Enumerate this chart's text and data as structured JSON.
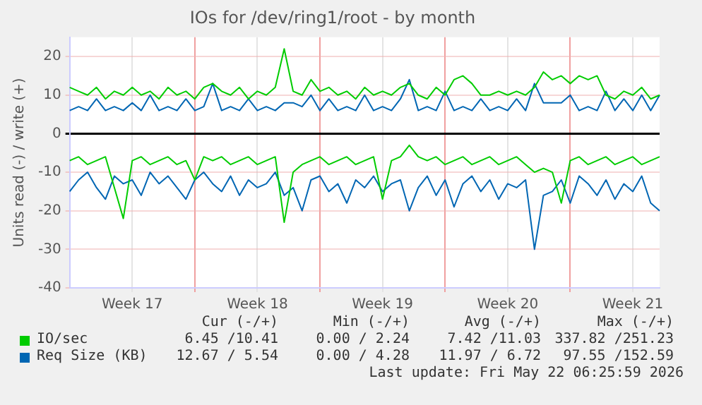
{
  "chart_data": {
    "type": "line",
    "title": "IOs for /dev/ring1/root - by month",
    "ylabel": "Units read (-) / write (+)",
    "categories": [
      null,
      null,
      null,
      null,
      null,
      null,
      null,
      "Week 17",
      null,
      null,
      null,
      null,
      null,
      null,
      null,
      null,
      null,
      null,
      null,
      null,
      null,
      "Week 18",
      null,
      null,
      null,
      null,
      null,
      null,
      null,
      null,
      null,
      null,
      null,
      null,
      null,
      "Week 19",
      null,
      null,
      null,
      null,
      null,
      null,
      null,
      null,
      null,
      null,
      null,
      null,
      null,
      "Week 20",
      null,
      null,
      null,
      null,
      null,
      null,
      null,
      null,
      null,
      null,
      null,
      null,
      null,
      "Week 21",
      null,
      null,
      null
    ],
    "ylim": [
      -40,
      25
    ],
    "yticks": [
      -40,
      -30,
      -20,
      -10,
      0,
      10,
      20
    ],
    "grid": true,
    "legend": "bottom",
    "marker": "none",
    "line_style": "solid",
    "series": [
      {
        "name": "IO/sec",
        "color": "#00cc00",
        "values": [
          12,
          11,
          10,
          12,
          9,
          11,
          10,
          12,
          10,
          11,
          9,
          12,
          10,
          11,
          9,
          12,
          13,
          11,
          10,
          12,
          9,
          11,
          10,
          12,
          22,
          11,
          10,
          14,
          11,
          12,
          10,
          11,
          9,
          12,
          10,
          11,
          10,
          12,
          13,
          10,
          9,
          12,
          10,
          14,
          15,
          13,
          10,
          10,
          11,
          10,
          11,
          10,
          12,
          16,
          14,
          15,
          13,
          15,
          14,
          15,
          10,
          9,
          11,
          10,
          12,
          9,
          10
        ]
      },
      {
        "color": "#00cc00",
        "values": [
          -7,
          -6,
          -8,
          -7,
          -6,
          -14,
          -22,
          -7,
          -6,
          -8,
          -7,
          -6,
          -8,
          -7,
          -12,
          -6,
          -7,
          -6,
          -8,
          -7,
          -6,
          -8,
          -7,
          -6,
          -23,
          -10,
          -8,
          -7,
          -6,
          -8,
          -7,
          -6,
          -8,
          -7,
          -6,
          -17,
          -7,
          -6,
          -3,
          -6,
          -7,
          -6,
          -8,
          -7,
          -6,
          -8,
          -7,
          -6,
          -8,
          -7,
          -6,
          -8,
          -10,
          -9,
          -10,
          -18,
          -7,
          -6,
          -8,
          -7,
          -6,
          -8,
          -7,
          -6,
          -8,
          -7,
          -6
        ]
      },
      {
        "name": "Req Size (KB)",
        "color": "#0066b3",
        "values": [
          6,
          7,
          6,
          9,
          6,
          7,
          6,
          8,
          6,
          10,
          6,
          7,
          6,
          9,
          6,
          7,
          13,
          6,
          7,
          6,
          9,
          6,
          7,
          6,
          8,
          8,
          7,
          10,
          6,
          9,
          6,
          7,
          6,
          10,
          6,
          7,
          6,
          9,
          14,
          6,
          7,
          6,
          11,
          6,
          7,
          6,
          9,
          6,
          7,
          6,
          9,
          6,
          13,
          8,
          8,
          8,
          10,
          6,
          7,
          6,
          11,
          6,
          9,
          6,
          10,
          6,
          10
        ]
      },
      {
        "color": "#0066b3",
        "values": [
          -15,
          -12,
          -10,
          -14,
          -17,
          -11,
          -13,
          -12,
          -16,
          -10,
          -13,
          -11,
          -14,
          -17,
          -12,
          -10,
          -13,
          -15,
          -11,
          -16,
          -12,
          -14,
          -13,
          -10,
          -16,
          -14,
          -20,
          -12,
          -11,
          -15,
          -13,
          -18,
          -12,
          -14,
          -11,
          -15,
          -13,
          -12,
          -20,
          -14,
          -11,
          -16,
          -12,
          -19,
          -13,
          -11,
          -15,
          -12,
          -17,
          -13,
          -14,
          -12,
          -30,
          -16,
          -15,
          -12,
          -18,
          -11,
          -13,
          -16,
          -12,
          -17,
          -13,
          -15,
          -11,
          -18,
          -20
        ]
      }
    ],
    "annotations": [
      "Cur (-/+)",
      "Min (-/+)",
      "Avg (-/+)",
      "Max (-/+)",
      "6.45 /10.41",
      "0.00 / 2.24",
      "7.42 /11.03",
      "337.82 /251.23",
      "12.67 / 5.54",
      "0.00 / 4.28",
      "11.97 / 6.72",
      "97.55 /152.59",
      "Last update: Fri May 22 06:25:59 2026"
    ]
  }
}
